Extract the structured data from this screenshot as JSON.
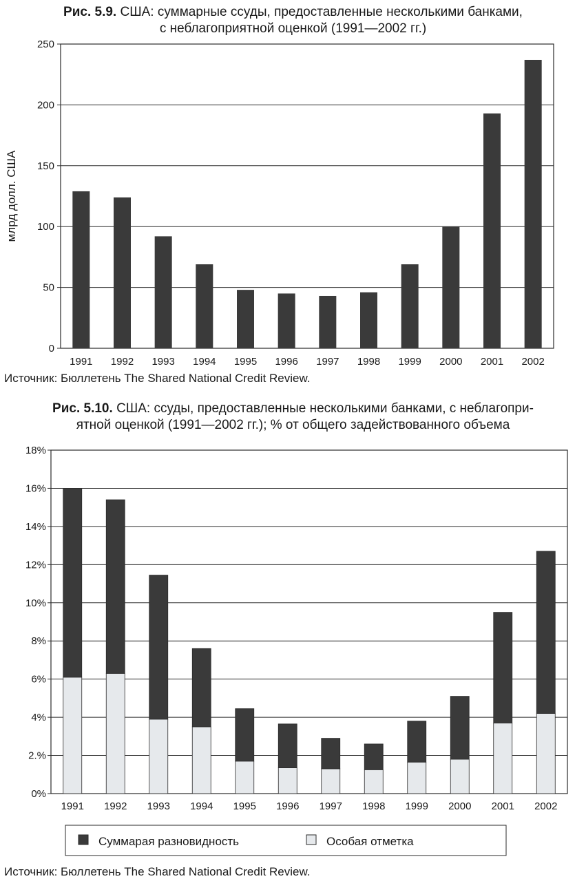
{
  "figure1": {
    "caption_num": "Рис. 5.9.",
    "caption_line1": "США: суммарные ссуды, предоставленные несколькими банками,",
    "caption_line2": "с неблагоприятной оценкой (1991—2002 гг.)",
    "source": "Источник: Бюллетень The Shared National Credit Review."
  },
  "figure2": {
    "caption_num": "Рис. 5.10.",
    "caption_line1": "США: ссуды, предоставленные несколькими банками, с неблагопри-",
    "caption_line2": "ятной оценкой (1991—2002 гг.); % от общего задействованного объема",
    "source": "Источник: Бюллетень The Shared National Credit Review."
  },
  "chart_data": [
    {
      "type": "bar",
      "title": "США: суммарные ссуды, предоставленные несколькими банками, с неблагоприятной оценкой (1991—2002 гг.)",
      "xlabel": "",
      "ylabel": "млрд долл. США",
      "categories": [
        "1991",
        "1992",
        "1993",
        "1994",
        "1995",
        "1996",
        "1997",
        "1998",
        "1999",
        "2000",
        "2001",
        "2002"
      ],
      "values": [
        129,
        124,
        92,
        69,
        48,
        45,
        43,
        46,
        69,
        100,
        193,
        237
      ],
      "ylim": [
        0,
        250
      ],
      "yticks": [
        0,
        50,
        100,
        150,
        200,
        250
      ],
      "ytick_labels": [
        "0",
        "50",
        "100",
        "150",
        "200",
        "250"
      ],
      "grid": true,
      "color": "#3a3a3a"
    },
    {
      "type": "bar",
      "stacked": true,
      "title": "США: ссуды, предоставленные несколькими банками, с неблагоприятной оценкой (1991—2002 гг.); % от общего задействованного объема",
      "xlabel": "",
      "ylabel": "",
      "categories": [
        "1991",
        "1992",
        "1993",
        "1994",
        "1995",
        "1996",
        "1997",
        "1998",
        "1999",
        "2000",
        "2001",
        "2002"
      ],
      "series": [
        {
          "name": "Особая отметка",
          "color": "#e6e9ec",
          "values": [
            6.1,
            6.3,
            3.9,
            3.5,
            1.7,
            1.35,
            1.3,
            1.25,
            1.65,
            1.8,
            3.7,
            4.2
          ]
        },
        {
          "name": "Суммарая разновидность",
          "color": "#3a3a3a",
          "values": [
            9.9,
            9.1,
            7.55,
            4.1,
            2.75,
            2.3,
            1.6,
            1.35,
            2.15,
            3.3,
            5.8,
            8.5
          ]
        }
      ],
      "ylim": [
        0,
        18
      ],
      "yticks": [
        0,
        2,
        4,
        6,
        8,
        10,
        12,
        14,
        16,
        18
      ],
      "ytick_labels": [
        "0%",
        "2.%",
        "4%",
        "6%",
        "8%",
        "10%",
        "12%",
        "14%",
        "16%",
        "18%"
      ],
      "legend": {
        "placement": "bottom",
        "items": [
          "Суммарая разновидность",
          "Особая отметка"
        ]
      },
      "grid": true
    }
  ]
}
